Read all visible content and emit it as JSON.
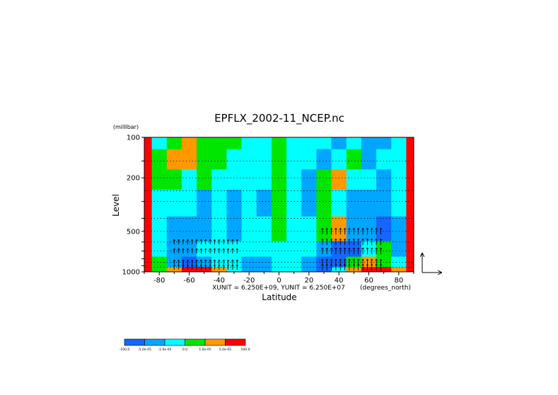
{
  "chart_data": {
    "type": "heatmap",
    "title": "EPFLX_2002-11_NCEP.nc",
    "xlabel": "Latitude",
    "x_units": "(degrees_north)",
    "ylabel": "Level",
    "y_units": "(millibar)",
    "xlim": [
      -90,
      90
    ],
    "ylim": [
      1000,
      100
    ],
    "y_scale": "log",
    "x_ticks": [
      -80,
      -60,
      -40,
      -20,
      0,
      20,
      40,
      60,
      80
    ],
    "x_tick_labels": [
      "-80",
      "-60",
      "-40",
      "-20",
      "0",
      "20",
      "40",
      "60",
      "80"
    ],
    "y_ticks": [
      100,
      200,
      500,
      1000
    ],
    "y_tick_labels": [
      "100",
      "200",
      "500",
      "1000"
    ],
    "vector_scale_text": "XUNIT = 6.250E+09, YUNIT = 6.250E+07",
    "grid": false,
    "colorbar": {
      "position": "bottom-left",
      "colors": [
        "#1466ff",
        "#00a6ff",
        "#00ffff",
        "#00e600",
        "#ff9900",
        "#ff0000"
      ],
      "labels": [
        "-100.0",
        "-5.0e-05",
        "-1.0e-05",
        "0.0",
        "1.0e-05",
        "5.0e-05",
        "100.0"
      ]
    },
    "grid_lat": [
      -90,
      -80,
      -70,
      -60,
      -50,
      -40,
      -30,
      -20,
      -10,
      0,
      10,
      20,
      30,
      40,
      50,
      60,
      70,
      80,
      90
    ],
    "grid_lev": [
      100,
      150,
      200,
      300,
      500,
      700,
      850,
      1000
    ],
    "field_class": [
      [
        5,
        2,
        3,
        4,
        3,
        3,
        3,
        2,
        2,
        3,
        2,
        2,
        2,
        1,
        2,
        1,
        1,
        2,
        5
      ],
      [
        5,
        3,
        4,
        4,
        3,
        3,
        2,
        2,
        2,
        3,
        2,
        2,
        1,
        2,
        3,
        1,
        2,
        2,
        5
      ],
      [
        5,
        3,
        3,
        2,
        3,
        2,
        2,
        2,
        2,
        3,
        2,
        1,
        3,
        4,
        2,
        2,
        1,
        2,
        5
      ],
      [
        5,
        2,
        2,
        2,
        1,
        2,
        1,
        2,
        1,
        3,
        2,
        1,
        3,
        2,
        1,
        1,
        1,
        2,
        5
      ],
      [
        5,
        2,
        1,
        1,
        1,
        2,
        1,
        2,
        2,
        3,
        2,
        2,
        3,
        4,
        1,
        1,
        0,
        1,
        5
      ],
      [
        5,
        2,
        1,
        1,
        2,
        2,
        2,
        2,
        2,
        2,
        2,
        2,
        1,
        0,
        0,
        2,
        3,
        1,
        5
      ],
      [
        5,
        3,
        1,
        0,
        1,
        2,
        2,
        1,
        1,
        2,
        2,
        1,
        0,
        0,
        3,
        4,
        3,
        2,
        5
      ],
      [
        5,
        3,
        4,
        5,
        5,
        4,
        2,
        1,
        1,
        2,
        2,
        1,
        0,
        2,
        4,
        5,
        5,
        4,
        5
      ]
    ]
  }
}
